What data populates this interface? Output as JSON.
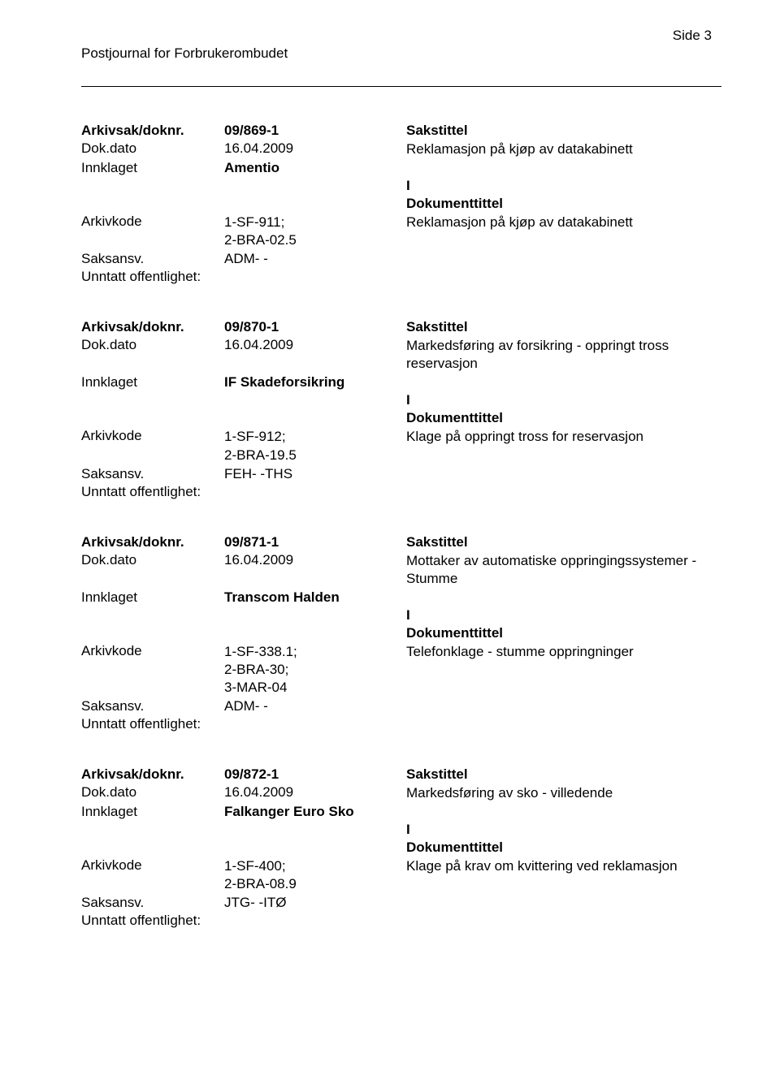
{
  "page_number_label": "Side 3",
  "journal_title": "Postjournal for Forbrukerombudet",
  "labels": {
    "arkivsak": "Arkivsak/doknr.",
    "dokdato": "Dok.dato",
    "innklaget": "Innklaget",
    "arkivkode": "Arkivkode",
    "saksansv": "Saksansv.",
    "unntatt": "Unntatt offentlighet:",
    "sakstittel": "Sakstittel",
    "dokumenttittel": "Dokumenttittel",
    "I": "I"
  },
  "entries": [
    {
      "arkivsak": "09/869-1",
      "dokdato": "16.04.2009",
      "innklaget": "Amentio",
      "arkivkode": "1-SF-911;\n2-BRA-02.5",
      "saksansv": "ADM- -",
      "sakstittel_text": "Reklamasjon på kjøp av datakabinett",
      "dokumenttittel_text": "Reklamasjon på kjøp av datakabinett"
    },
    {
      "arkivsak": "09/870-1",
      "dokdato": "16.04.2009",
      "innklaget": "IF Skadeforsikring",
      "arkivkode": "1-SF-912;\n2-BRA-19.5",
      "saksansv": "FEH- -THS",
      "sakstittel_text": "Markedsføring av forsikring - oppringt tross reservasjon",
      "dokumenttittel_text": "Klage på oppringt tross for reservasjon"
    },
    {
      "arkivsak": "09/871-1",
      "dokdato": "16.04.2009",
      "innklaget": "Transcom Halden",
      "arkivkode": "1-SF-338.1;\n2-BRA-30;\n3-MAR-04",
      "saksansv": "ADM- -",
      "sakstittel_text": "Mottaker av automatiske oppringingssystemer - Stumme",
      "dokumenttittel_text": "Telefonklage - stumme oppringninger"
    },
    {
      "arkivsak": "09/872-1",
      "dokdato": "16.04.2009",
      "innklaget": "Falkanger Euro Sko",
      "arkivkode": "1-SF-400;\n2-BRA-08.9",
      "saksansv": "JTG- -ITØ",
      "sakstittel_text": "Markedsføring av sko - villedende",
      "dokumenttittel_text": "Klage på krav om kvittering ved reklamasjon"
    }
  ]
}
